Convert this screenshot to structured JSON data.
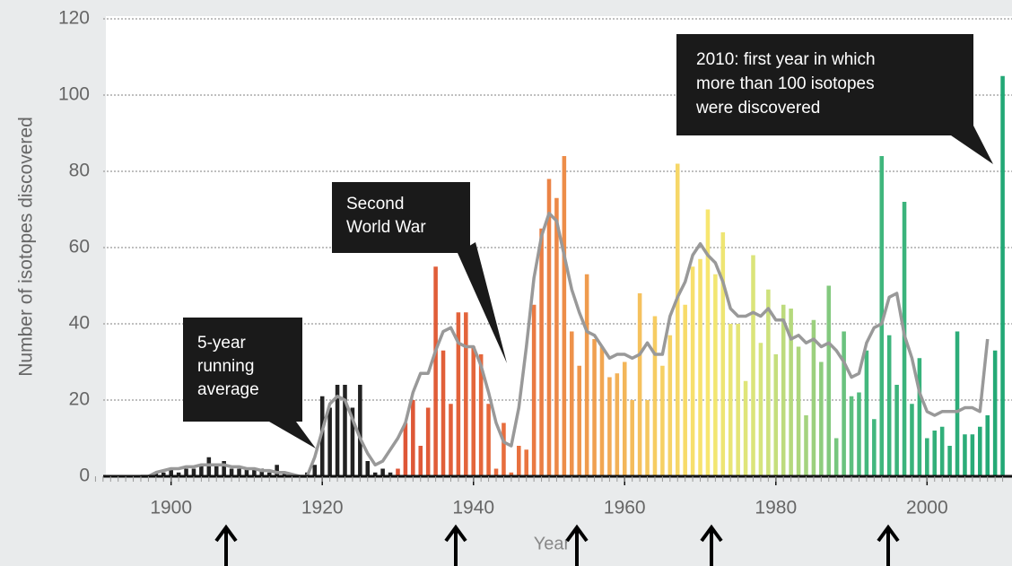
{
  "chart_data": {
    "type": "bar",
    "y_label": "Number of isotopes discovered",
    "x_label": "Year",
    "x": [
      1890,
      1891,
      1892,
      1893,
      1894,
      1895,
      1896,
      1897,
      1898,
      1899,
      1900,
      1901,
      1902,
      1903,
      1904,
      1905,
      1906,
      1907,
      1908,
      1909,
      1910,
      1911,
      1912,
      1913,
      1914,
      1915,
      1916,
      1917,
      1918,
      1919,
      1920,
      1921,
      1922,
      1923,
      1924,
      1925,
      1926,
      1927,
      1928,
      1929,
      1930,
      1931,
      1932,
      1933,
      1934,
      1935,
      1936,
      1937,
      1938,
      1939,
      1940,
      1941,
      1942,
      1943,
      1944,
      1945,
      1946,
      1947,
      1948,
      1949,
      1950,
      1951,
      1952,
      1953,
      1954,
      1955,
      1956,
      1957,
      1958,
      1959,
      1960,
      1961,
      1962,
      1963,
      1964,
      1965,
      1966,
      1967,
      1968,
      1969,
      1970,
      1971,
      1972,
      1973,
      1974,
      1975,
      1976,
      1977,
      1978,
      1979,
      1980,
      1981,
      1982,
      1983,
      1984,
      1985,
      1986,
      1987,
      1988,
      1989,
      1990,
      1991,
      1992,
      1993,
      1994,
      1995,
      1996,
      1997,
      1998,
      1999,
      2000,
      2001,
      2002,
      2003,
      2004,
      2005,
      2006,
      2007,
      2008,
      2009,
      2010
    ],
    "series": [
      {
        "type": "bar",
        "values": [
          0,
          0,
          0,
          0,
          0,
          0,
          0,
          0,
          1,
          1,
          2,
          1,
          2,
          2,
          3,
          5,
          3,
          4,
          2,
          2,
          2,
          2,
          2,
          1,
          3,
          1,
          0,
          0,
          1,
          3,
          21,
          18,
          24,
          24,
          18,
          24,
          4,
          1,
          2,
          1,
          2,
          14,
          20,
          8,
          18,
          55,
          33,
          19,
          43,
          43,
          34,
          32,
          19,
          2,
          14,
          1,
          8,
          7,
          45,
          65,
          78,
          73,
          84,
          38,
          29,
          53,
          36,
          34,
          26,
          27,
          30,
          20,
          48,
          20,
          42,
          29,
          37,
          82,
          45,
          55,
          57,
          70,
          53,
          64,
          40,
          40,
          25,
          58,
          35,
          49,
          32,
          45,
          44,
          34,
          16,
          41,
          30,
          50,
          10,
          38,
          21,
          22,
          33,
          15,
          84,
          37,
          24,
          72,
          19,
          31,
          10,
          12,
          13,
          8,
          38,
          11,
          11,
          13,
          16,
          33,
          105
        ],
        "color_stops": [
          {
            "value": 1929,
            "color": "#222222"
          },
          {
            "value": 1930,
            "color": "#dd5436"
          },
          {
            "value": 1946,
            "color": "#e8703e"
          },
          {
            "value": 1956,
            "color": "#f0a050"
          },
          {
            "value": 1964,
            "color": "#f6cc62"
          },
          {
            "value": 1971,
            "color": "#f7e670"
          },
          {
            "value": 1978,
            "color": "#d6e47c"
          },
          {
            "value": 1985,
            "color": "#9cd07e"
          },
          {
            "value": 1992,
            "color": "#44b87e"
          },
          {
            "value": 2010,
            "color": "#22a876"
          }
        ]
      },
      {
        "type": "line",
        "color": "#999999",
        "values": [
          null,
          null,
          null,
          null,
          null,
          null,
          0,
          0,
          1,
          1.5,
          2,
          2,
          2.5,
          2.5,
          3,
          3,
          3,
          3,
          2.5,
          2.5,
          2,
          2,
          1.5,
          1.5,
          1,
          1,
          0.5,
          0,
          0,
          5,
          12,
          19,
          21,
          20,
          15,
          10,
          6,
          3,
          4,
          7,
          10,
          14,
          22,
          27,
          27,
          33,
          38,
          39,
          35,
          34,
          34,
          29,
          22,
          14,
          9,
          8,
          18,
          34,
          52,
          63,
          69,
          67,
          58,
          49,
          43,
          38,
          37,
          34,
          31,
          32,
          32,
          31,
          32,
          35,
          32,
          32,
          42,
          47,
          51,
          58,
          61,
          58,
          56,
          51,
          44,
          42,
          42,
          43,
          42,
          44,
          41,
          41,
          36,
          37,
          35,
          36,
          34,
          35,
          33,
          30,
          26,
          27,
          35,
          39,
          40,
          47,
          48,
          37,
          31,
          22,
          17,
          16,
          17,
          17,
          17,
          18,
          18,
          17,
          36,
          null,
          null
        ]
      }
    ],
    "xlim": [
      1889,
      2011
    ],
    "xticks": [
      1900,
      1920,
      1940,
      1960,
      1980,
      2000
    ],
    "ylim": [
      0,
      120
    ],
    "yticks": [
      0,
      20,
      40,
      60,
      80,
      100,
      120
    ],
    "grid": true,
    "annotations": [
      {
        "lines": [
          "5-year",
          "running",
          "average"
        ]
      },
      {
        "lines": [
          "Second",
          "World War"
        ]
      },
      {
        "lines": [
          "2010: first year in which",
          "more than 100 isotopes",
          "were discovered"
        ]
      }
    ]
  }
}
